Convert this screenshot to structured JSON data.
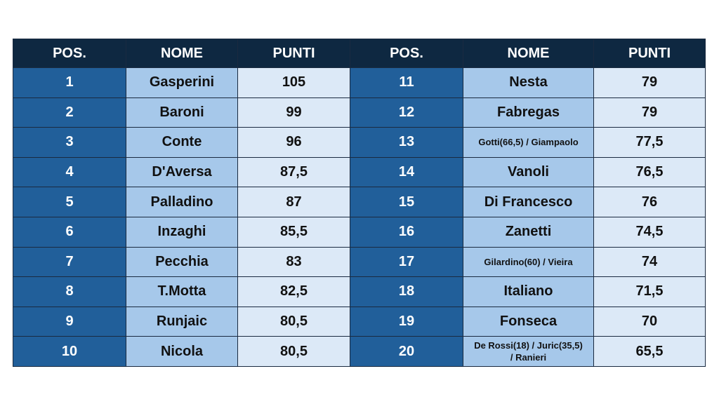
{
  "table": {
    "headers": [
      "POS.",
      "NOME",
      "PUNTI",
      "POS.",
      "NOME",
      "PUNTI"
    ],
    "rows": [
      [
        "1",
        "Gasperini",
        "105",
        "11",
        "Nesta",
        "79"
      ],
      [
        "2",
        "Baroni",
        "99",
        "12",
        "Fabregas",
        "79"
      ],
      [
        "3",
        "Conte",
        "96",
        "13",
        "Gotti(66,5) / Giampaolo",
        "77,5"
      ],
      [
        "4",
        "D'Aversa",
        "87,5",
        "14",
        "Vanoli",
        "76,5"
      ],
      [
        "5",
        "Palladino",
        "87",
        "15",
        "Di Francesco",
        "76"
      ],
      [
        "6",
        "Inzaghi",
        "85,5",
        "16",
        "Zanetti",
        "74,5"
      ],
      [
        "7",
        "Pecchia",
        "83",
        "17",
        "Gilardino(60) / Vieira",
        "74"
      ],
      [
        "8",
        "T.Motta",
        "82,5",
        "18",
        "Italiano",
        "71,5"
      ],
      [
        "9",
        "Runjaic",
        "80,5",
        "19",
        "Fonseca",
        "70"
      ],
      [
        "10",
        "Nicola",
        "80,5",
        "20",
        "De Rossi(18) / Juric(35,5) / Ranieri",
        "65,5"
      ]
    ]
  }
}
